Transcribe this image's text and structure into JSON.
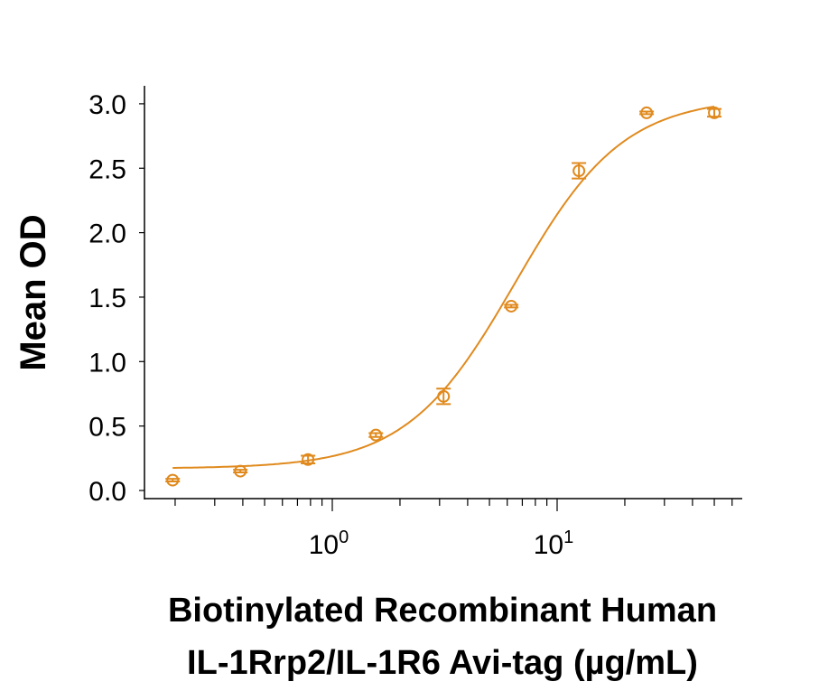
{
  "chart_data": {
    "type": "scatter",
    "title": "",
    "xlabel_lines": [
      "Biotinylated Recombinant Human",
      "IL-1Rrp2/IL-1R6 Avi-tag (µg/mL)"
    ],
    "ylabel": "Mean OD",
    "x_scale": "log",
    "xlim": [
      0.17,
      65
    ],
    "ylim": [
      -0.06,
      3.15
    ],
    "x_ticks": [
      {
        "value": 1,
        "base": "10",
        "exp": "0"
      },
      {
        "value": 10,
        "base": "10",
        "exp": "1"
      }
    ],
    "y_ticks": [
      "0.0",
      "0.5",
      "1.0",
      "1.5",
      "2.0",
      "2.5",
      "3.0"
    ],
    "grid": false,
    "color": "#E08A1E",
    "series": [
      {
        "x": [
          0.195,
          0.39,
          0.78,
          1.5625,
          3.125,
          6.25,
          12.5,
          25,
          50
        ],
        "y": [
          0.08,
          0.15,
          0.24,
          0.43,
          0.73,
          1.43,
          2.48,
          2.93,
          2.93
        ],
        "error": [
          0.01,
          0.01,
          0.03,
          0.015,
          0.06,
          0.01,
          0.06,
          0.01,
          0.03
        ]
      }
    ],
    "fit": {
      "model": "4PL",
      "bottom": 0.17,
      "top": 3.05,
      "ec50": 6.5,
      "hill": 1.8
    }
  }
}
